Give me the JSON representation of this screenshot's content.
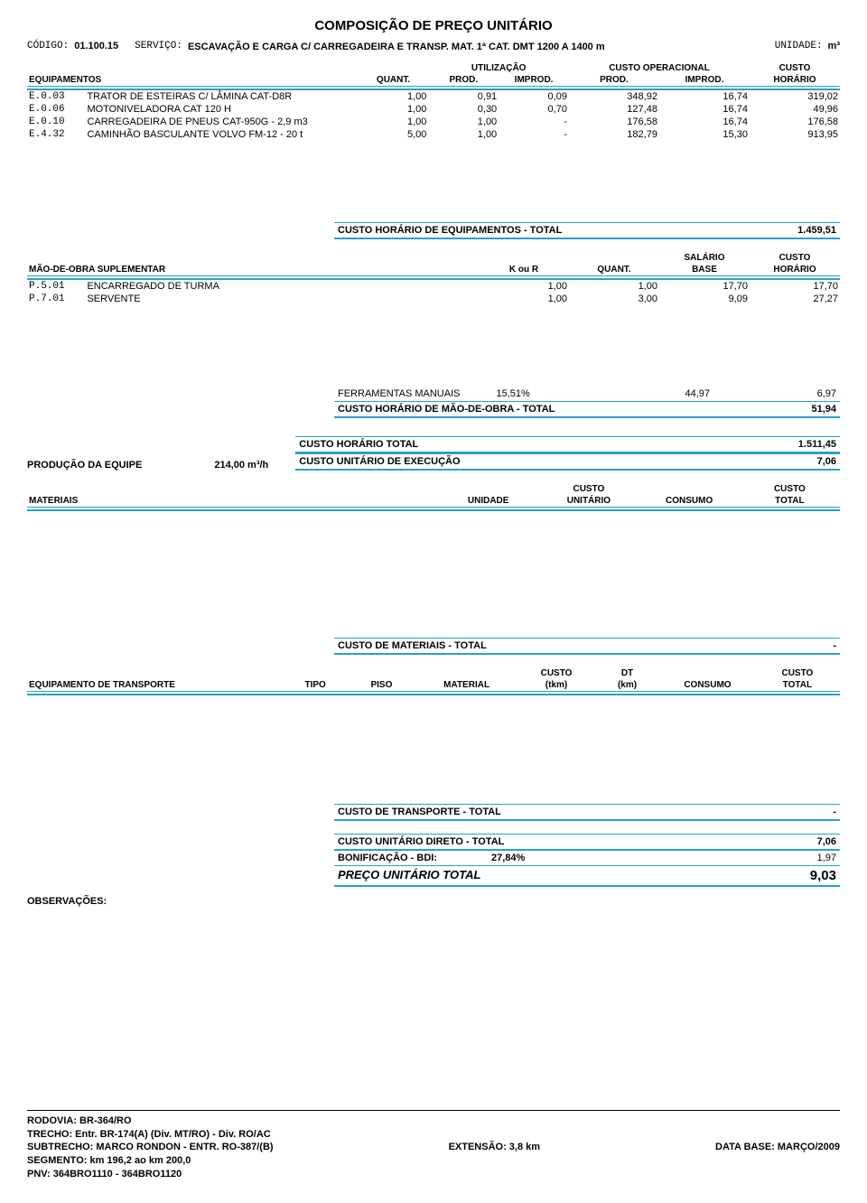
{
  "title": "COMPOSIÇÃO DE PREÇO UNITÁRIO",
  "header": {
    "codigo_label": "CÓDIGO:",
    "codigo": "01.100.15",
    "servico_label": "SERVIÇO:",
    "servico": "ESCAVAÇÃO E CARGA C/ CARREGADEIRA E TRANSP. MAT. 1ª CAT. DMT 1200 A 1400 m",
    "unidade_label": "UNIDADE:",
    "unidade": "m³"
  },
  "equip": {
    "section": "EQUIPAMENTOS",
    "hdr": {
      "quant": "QUANT.",
      "utilizacao": "UTILIZAÇÃO",
      "prod": "PROD.",
      "improd": "IMPROD.",
      "custo_op": "CUSTO OPERACIONAL",
      "custo": "CUSTO",
      "horario": "HORÁRIO"
    },
    "rows": [
      {
        "code": "E.0.03",
        "desc": "TRATOR DE ESTEIRAS C/ LÂMINA CAT-D8R",
        "quant": "1,00",
        "uprod": "0,91",
        "uimprod": "0,09",
        "cprod": "348,92",
        "cimprod": "16,74",
        "chor": "319,02"
      },
      {
        "code": "E.0.06",
        "desc": "MOTONIVELADORA CAT 120 H",
        "quant": "1,00",
        "uprod": "0,30",
        "uimprod": "0,70",
        "cprod": "127,48",
        "cimprod": "16,74",
        "chor": "49,96"
      },
      {
        "code": "E.0.10",
        "desc": "CARREGADEIRA DE PNEUS CAT-950G - 2,9 m3",
        "quant": "1,00",
        "uprod": "1,00",
        "uimprod": "-",
        "cprod": "176,58",
        "cimprod": "16,74",
        "chor": "176,58"
      },
      {
        "code": "E.4.32",
        "desc": "CAMINHÃO BASCULANTE VOLVO FM-12 - 20 t",
        "quant": "5,00",
        "uprod": "1,00",
        "uimprod": "-",
        "cprod": "182,79",
        "cimprod": "15,30",
        "chor": "913,95"
      }
    ],
    "total_label": "CUSTO HORÁRIO DE EQUIPAMENTOS - TOTAL",
    "total": "1.459,51"
  },
  "mao": {
    "section": "MÃO-DE-OBRA SUPLEMENTAR",
    "hdr": {
      "kour": "K ou R",
      "quant": "QUANT.",
      "salario": "SALÁRIO",
      "base": "BASE",
      "custo": "CUSTO",
      "horario": "HORÁRIO"
    },
    "rows": [
      {
        "code": "P.5.01",
        "desc": "ENCARREGADO DE TURMA",
        "k": "1,00",
        "q": "1,00",
        "sal": "17,70",
        "ch": "17,70"
      },
      {
        "code": "P.7.01",
        "desc": "SERVENTE",
        "k": "1,00",
        "q": "3,00",
        "sal": "9,09",
        "ch": "27,27"
      }
    ],
    "ferr_label": "FERRAMENTAS MANUAIS",
    "ferr_pct": "15,51%",
    "ferr_a": "44,97",
    "ferr_b": "6,97",
    "total_label": "CUSTO HORÁRIO DE MÃO-DE-OBRA - TOTAL",
    "total": "51,94"
  },
  "prod": {
    "label": "PRODUÇÃO DA EQUIPE",
    "val": "214,00",
    "unit": "m³/h",
    "cht_label": "CUSTO HORÁRIO TOTAL",
    "cht": "1.511,45",
    "cue_label": "CUSTO UNITÁRIO DE EXECUÇÃO",
    "cue": "7,06"
  },
  "mat": {
    "section": "MATERIAIS",
    "hdr": {
      "unidade": "UNIDADE",
      "cu1": "CUSTO",
      "cu2": "UNITÁRIO",
      "consumo": "CONSUMO",
      "ct1": "CUSTO",
      "ct2": "TOTAL"
    },
    "total_label": "CUSTO DE MATERIAIS - TOTAL",
    "total": "-"
  },
  "transp": {
    "section": "EQUIPAMENTO DE TRANSPORTE",
    "hdr": {
      "tipo": "TIPO",
      "piso": "PISO",
      "material": "MATERIAL",
      "c1": "CUSTO",
      "c2": "(tkm)",
      "d1": "DT",
      "d2": "(km)",
      "consumo": "CONSUMO",
      "t1": "CUSTO",
      "t2": "TOTAL"
    },
    "total_label": "CUSTO DE TRANSPORTE - TOTAL",
    "total": "-"
  },
  "final": {
    "cud_label": "CUSTO UNITÁRIO DIRETO - TOTAL",
    "cud": "7,06",
    "bdi_label": "BONIFICAÇÃO - BDI:",
    "bdi_pct": "27,84%",
    "bdi_val": "1,97",
    "put_label": "PREÇO UNITÁRIO TOTAL",
    "put": "9,03"
  },
  "obs": "OBSERVAÇÕES:",
  "footer": {
    "l1": "RODOVIA: BR-364/RO",
    "l2": "TRECHO: Entr. BR-174(A) (Div. MT/RO) - Div. RO/AC",
    "l3": "SUBTRECHO: MARCO RONDON - ENTR. RO-387/(B)",
    "l4": "SEGMENTO: km 196,2 ao km 200,0",
    "l5": "PNV: 364BRO1110 - 364BRO1120",
    "ext": "EXTENSÃO: 3,8 km",
    "data": "DATA BASE: MARÇO/2009"
  }
}
